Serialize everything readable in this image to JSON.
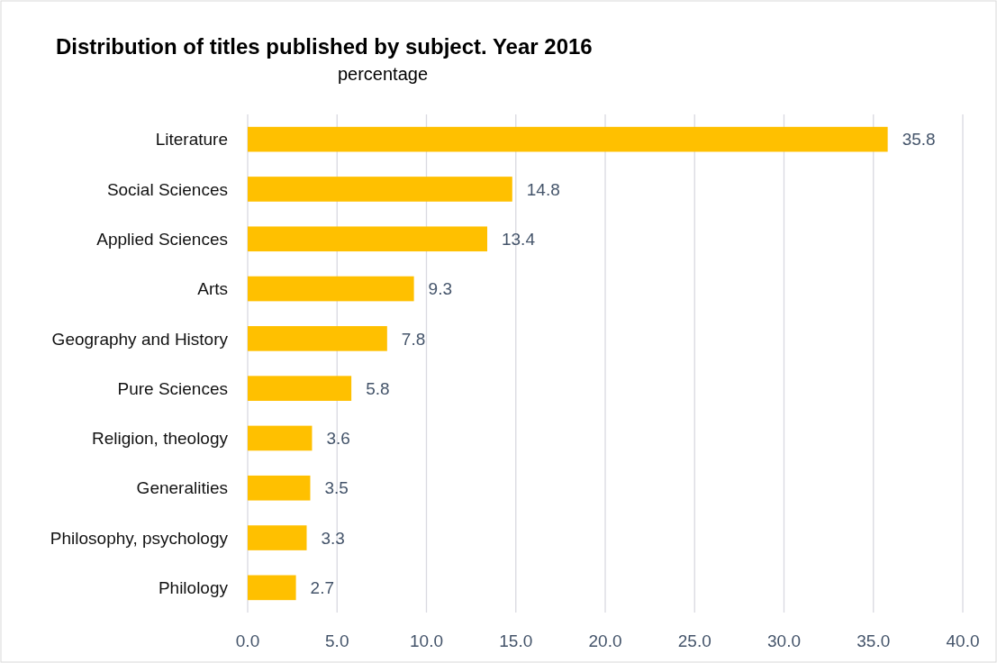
{
  "chart_data": {
    "type": "bar",
    "orientation": "horizontal",
    "title": "Distribution of titles published by subject. Year 2016",
    "subtitle": "percentage",
    "categories": [
      "Literature",
      "Social Sciences",
      "Applied Sciences",
      "Arts",
      "Geography and History",
      "Pure Sciences",
      "Religion, theology",
      "Generalities",
      "Philosophy, psychology",
      "Philology"
    ],
    "values": [
      35.8,
      14.8,
      13.4,
      9.3,
      7.8,
      5.8,
      3.6,
      3.5,
      3.3,
      2.7
    ],
    "color": "#ffc000",
    "xlim": [
      0,
      40
    ],
    "xticks": [
      {
        "value": 0,
        "label": "0.0"
      },
      {
        "value": 5,
        "label": "5.0"
      },
      {
        "value": 10,
        "label": "10.0"
      },
      {
        "value": 15,
        "label": "15.0"
      },
      {
        "value": 20,
        "label": "20.0"
      },
      {
        "value": 25,
        "label": "25.0"
      },
      {
        "value": 30,
        "label": "30.0"
      },
      {
        "value": 35,
        "label": "35.0"
      },
      {
        "value": 40,
        "label": "40.0"
      }
    ],
    "grid": "x",
    "data_labels": true
  }
}
